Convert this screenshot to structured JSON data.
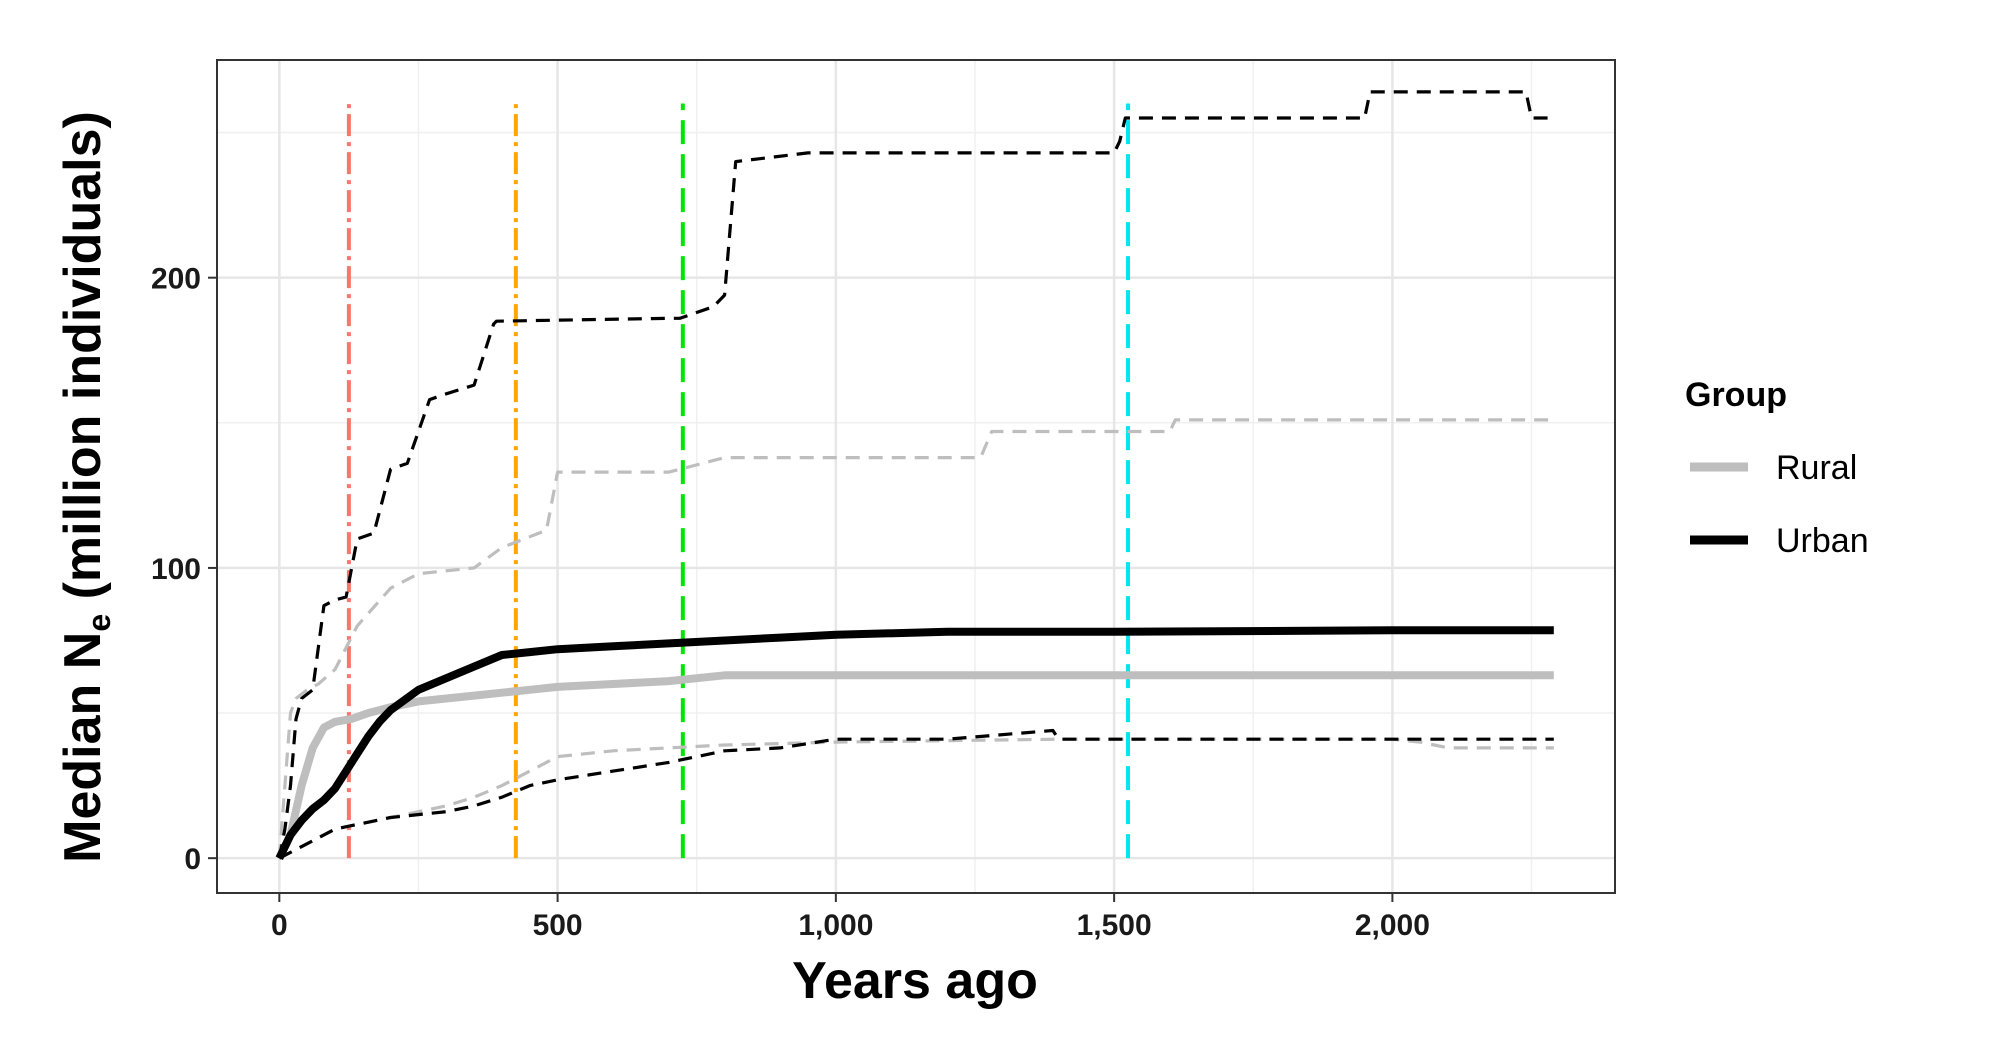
{
  "chart_data": {
    "type": "line",
    "title": "",
    "xlabel": "Years ago",
    "ylabel_main": "Median N",
    "ylabel_sub": "e",
    "ylabel_rest": " (million individuals)",
    "xlim": [
      -112,
      2400
    ],
    "ylim": [
      -12,
      275
    ],
    "x_ticks": [
      0,
      500,
      1000,
      1500,
      2000
    ],
    "x_tick_labels": [
      "0",
      "500",
      "1,000",
      "1,500",
      "2,000"
    ],
    "y_ticks": [
      0,
      100,
      200
    ],
    "y_tick_labels": [
      "0",
      "100",
      "200"
    ],
    "grid": true,
    "legend": {
      "title": "Group",
      "placement": "right",
      "entries": [
        {
          "label": "Rural",
          "color": "#bebebe"
        },
        {
          "label": "Urban",
          "color": "#000000"
        }
      ]
    },
    "series": [
      {
        "name": "Rural",
        "role": "median",
        "color": "#bebebe",
        "style": "solid",
        "x": [
          0,
          20,
          40,
          60,
          80,
          100,
          130,
          160,
          200,
          250,
          300,
          350,
          400,
          450,
          500,
          600,
          700,
          750,
          800,
          900,
          1000,
          1500,
          2000,
          2290
        ],
        "y": [
          0,
          8,
          25,
          38,
          45,
          47,
          48,
          50,
          52,
          54,
          55,
          56,
          57,
          58,
          59,
          60,
          61,
          62,
          63,
          63,
          63,
          63,
          63,
          63
        ]
      },
      {
        "name": "Urban",
        "role": "median",
        "color": "#000000",
        "style": "solid",
        "x": [
          0,
          20,
          40,
          60,
          80,
          100,
          120,
          140,
          160,
          180,
          200,
          250,
          300,
          350,
          400,
          450,
          500,
          600,
          700,
          800,
          900,
          1000,
          1200,
          1500,
          2000,
          2290
        ],
        "y": [
          0,
          8,
          13,
          17,
          20,
          24,
          30,
          36,
          42,
          47,
          51,
          58,
          62,
          66,
          70,
          71,
          72,
          73,
          74,
          75,
          76,
          77,
          78,
          78,
          78.5,
          78.5
        ]
      },
      {
        "name": "Rural",
        "role": "upper",
        "color": "#bebebe",
        "style": "dashed",
        "x": [
          0,
          20,
          30,
          50,
          70,
          100,
          140,
          200,
          250,
          350,
          400,
          480,
          500,
          700,
          800,
          1000,
          1260,
          1280,
          1600,
          1610,
          2290
        ],
        "y": [
          0,
          50,
          55,
          58,
          60,
          65,
          80,
          93,
          98,
          100,
          107,
          113,
          133,
          133,
          138,
          138,
          138,
          147,
          147,
          151,
          151
        ]
      },
      {
        "name": "Urban",
        "role": "upper",
        "color": "#000000",
        "style": "dashed",
        "x": [
          0,
          10,
          20,
          30,
          40,
          60,
          80,
          100,
          120,
          140,
          170,
          200,
          230,
          270,
          300,
          350,
          385,
          390,
          700,
          720,
          780,
          800,
          820,
          950,
          1500,
          1510,
          1520,
          1550,
          1950,
          1960,
          2240,
          2250,
          2290
        ],
        "y": [
          0,
          10,
          25,
          48,
          55,
          58,
          87,
          89,
          90,
          110,
          112,
          134,
          136,
          158,
          160,
          163,
          184,
          185,
          186,
          186,
          190,
          194,
          240,
          243,
          243,
          247,
          255,
          255,
          255,
          264,
          264,
          255,
          255
        ]
      },
      {
        "name": "Rural",
        "role": "lower",
        "color": "#bebebe",
        "style": "dashed",
        "x": [
          0,
          50,
          100,
          150,
          200,
          250,
          300,
          350,
          400,
          450,
          500,
          600,
          700,
          800,
          1000,
          1400,
          1500,
          2000,
          2050,
          2100,
          2290
        ],
        "y": [
          0,
          5,
          10,
          12,
          14,
          16,
          18,
          21,
          25,
          30,
          35,
          37,
          38,
          39,
          40,
          41,
          41,
          41,
          40,
          38,
          38
        ]
      },
      {
        "name": "Urban",
        "role": "lower",
        "color": "#000000",
        "style": "dashed",
        "x": [
          0,
          50,
          100,
          150,
          200,
          300,
          350,
          400,
          450,
          500,
          600,
          700,
          800,
          900,
          1000,
          1200,
          1390,
          1400,
          1600,
          2000,
          2290
        ],
        "y": [
          0,
          5,
          10,
          12,
          14,
          16,
          18,
          21,
          25,
          27,
          30,
          33,
          37,
          38,
          41,
          41,
          44,
          41,
          41,
          41,
          41
        ]
      }
    ],
    "vertical_lines": [
      {
        "x": 125,
        "color": "#f8766d",
        "style": "dotdash"
      },
      {
        "x": 425,
        "color": "#ffa500",
        "style": "dotdash"
      },
      {
        "x": 725,
        "color": "#00e600",
        "style": "longdash"
      },
      {
        "x": 1525,
        "color": "#00e5ee",
        "style": "longdash"
      }
    ],
    "vline_ymax": 260
  }
}
